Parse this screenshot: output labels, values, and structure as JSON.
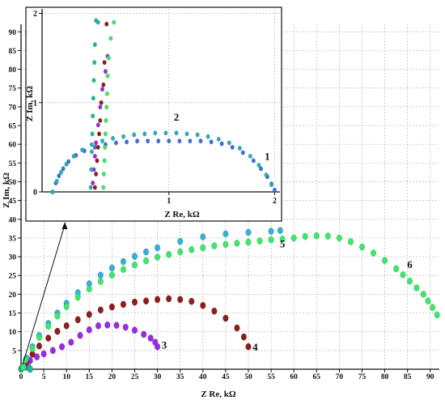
{
  "chart_data": [
    {
      "type": "scatter",
      "role": "main",
      "xlabel": "Z Re, kΩ",
      "ylabel": "Z Im, kΩ",
      "xlim": [
        0,
        92
      ],
      "ylim": [
        0,
        92
      ],
      "xticks": [
        0,
        5,
        10,
        15,
        20,
        25,
        30,
        35,
        40,
        45,
        50,
        55,
        60,
        65,
        70,
        75,
        80,
        85,
        90
      ],
      "yticks": [
        5,
        10,
        15,
        20,
        25,
        30,
        35,
        40,
        45,
        50,
        55,
        60,
        65,
        70,
        75,
        80,
        85,
        90
      ],
      "grid": true,
      "series": [
        {
          "name": "1",
          "color": "#3fa0e0",
          "x": [
            0.0,
            0.1,
            0.3,
            0.6,
            1.0,
            1.4,
            1.8,
            2.0
          ],
          "y": [
            0.0,
            0.3,
            0.5,
            0.6,
            0.6,
            0.5,
            0.3,
            0.0
          ]
        },
        {
          "name": "2",
          "color": "#22b5a5",
          "x": [
            0.0,
            0.2,
            0.5,
            1.0,
            1.5,
            1.8,
            2.0
          ],
          "y": [
            0.0,
            0.4,
            0.6,
            0.7,
            0.6,
            0.4,
            0.0
          ]
        },
        {
          "name": "3",
          "color": "#9a2be0",
          "x": [
            0.5,
            1.0,
            2.0,
            3.5,
            5.0,
            7.0,
            9.0,
            11.0,
            13.0,
            15.0,
            17.0,
            19.0,
            21.0,
            23.0,
            25.0,
            27.0,
            28.5,
            29.5,
            30.0
          ],
          "y": [
            0.5,
            1.3,
            2.3,
            3.3,
            4.1,
            5.0,
            6.0,
            7.2,
            9.0,
            10.5,
            11.6,
            11.8,
            11.7,
            11.2,
            10.4,
            9.3,
            8.3,
            7.2,
            6.0
          ]
        },
        {
          "name": "4",
          "color": "#8e1d1d",
          "x": [
            0.5,
            1.2,
            2.5,
            4.0,
            6.0,
            8.0,
            10.0,
            12.5,
            15.0,
            17.5,
            20.0,
            22.5,
            25.0,
            27.5,
            30.0,
            32.5,
            35.0,
            37.5,
            40.0,
            42.5,
            45.0,
            47.5,
            49.0,
            50.0
          ],
          "y": [
            0.5,
            2.0,
            4.0,
            6.2,
            8.3,
            10.1,
            11.6,
            13.2,
            14.6,
            15.8,
            16.6,
            17.3,
            17.9,
            18.2,
            18.6,
            18.8,
            18.6,
            18.1,
            17.0,
            15.5,
            13.6,
            11.0,
            8.6,
            6.0
          ]
        },
        {
          "name": "5",
          "color": "#35b1d6",
          "x": [
            0.5,
            1.2,
            2.5,
            4.0,
            6.0,
            8.0,
            10.0,
            12.5,
            15.0,
            17.5,
            20.0,
            22.5,
            25.0,
            27.5,
            30.0,
            35.0,
            40.0,
            45.0,
            50.0,
            55.0,
            57.0
          ],
          "y": [
            0.8,
            3.0,
            6.0,
            9.0,
            12.2,
            15.0,
            17.6,
            20.4,
            22.8,
            25.1,
            27.0,
            28.7,
            30.1,
            31.3,
            32.4,
            34.1,
            35.3,
            36.1,
            36.5,
            36.8,
            37.0
          ]
        },
        {
          "name": "6",
          "color": "#3ee66b",
          "x": [
            0.5,
            1.0,
            2.5,
            4.0,
            6.0,
            8.0,
            10.0,
            12.5,
            15.0,
            17.5,
            20.0,
            22.5,
            25.0,
            27.5,
            30.0,
            32.5,
            35.0,
            37.5,
            40.0,
            42.5,
            45.0,
            47.5,
            50.0,
            52.5,
            55.0,
            57.5,
            60.0,
            62.5,
            65.0,
            67.5,
            70.0,
            72.5,
            75.0,
            77.5,
            80.0,
            82.5,
            84.0,
            85.5,
            87.0,
            88.5,
            89.5,
            90.5,
            91.5
          ],
          "y": [
            0.5,
            2.5,
            5.5,
            8.5,
            11.5,
            14.2,
            16.7,
            19.2,
            21.4,
            23.4,
            25.1,
            26.6,
            27.8,
            28.9,
            29.9,
            30.6,
            31.3,
            31.9,
            32.4,
            32.9,
            33.3,
            33.6,
            33.9,
            34.2,
            34.5,
            34.7,
            35.0,
            35.4,
            35.6,
            35.5,
            35.0,
            34.0,
            32.6,
            31.0,
            29.0,
            26.8,
            25.2,
            23.5,
            21.7,
            20.0,
            18.2,
            16.5,
            14.5
          ]
        }
      ],
      "point_labels": [
        "1",
        "2",
        "3",
        "4",
        "5",
        "6"
      ]
    },
    {
      "type": "scatter",
      "role": "inset",
      "xlabel": "Z Re, kΩ",
      "ylabel": "Z Im, kΩ",
      "xlim": [
        -0.2,
        2.05
      ],
      "ylim": [
        0,
        2.05
      ],
      "xticks": [
        1,
        2
      ],
      "yticks": [
        0,
        1,
        2
      ],
      "grid": true,
      "series": [
        {
          "name": "1",
          "color": "#3b6fe0",
          "x": [
            -0.1,
            -0.07,
            -0.04,
            0.0,
            0.05,
            0.12,
            0.2,
            0.3,
            0.4,
            0.5,
            0.6,
            0.7,
            0.8,
            0.9,
            1.0,
            1.1,
            1.2,
            1.3,
            1.4,
            1.5,
            1.6,
            1.7,
            1.8,
            1.87,
            1.93,
            1.97,
            2.0
          ],
          "y": [
            0.0,
            0.1,
            0.18,
            0.26,
            0.34,
            0.41,
            0.46,
            0.5,
            0.53,
            0.55,
            0.56,
            0.57,
            0.57,
            0.57,
            0.57,
            0.57,
            0.57,
            0.57,
            0.56,
            0.54,
            0.5,
            0.44,
            0.35,
            0.26,
            0.17,
            0.09,
            0.02
          ]
        },
        {
          "name": "2",
          "color": "#27b0b8",
          "x": [
            -0.1,
            -0.06,
            -0.02,
            0.03,
            0.1,
            0.18,
            0.27,
            0.37,
            0.47,
            0.57,
            0.67,
            0.77,
            0.87,
            0.97,
            1.07,
            1.17,
            1.27,
            1.37,
            1.47,
            1.57,
            1.67,
            1.77,
            1.85,
            1.92,
            1.97
          ],
          "y": [
            0.0,
            0.12,
            0.22,
            0.31,
            0.4,
            0.47,
            0.53,
            0.57,
            0.6,
            0.62,
            0.64,
            0.65,
            0.66,
            0.66,
            0.66,
            0.65,
            0.64,
            0.62,
            0.59,
            0.55,
            0.49,
            0.4,
            0.3,
            0.19,
            0.08
          ]
        },
        {
          "name": "3",
          "color": "#9a2be0",
          "x": [
            0.28,
            0.29,
            0.3,
            0.31,
            0.33,
            0.35,
            0.37,
            0.4,
            0.42
          ],
          "y": [
            0.1,
            0.25,
            0.4,
            0.55,
            0.75,
            0.95,
            1.15,
            1.35,
            1.52
          ]
        },
        {
          "name": "4",
          "color": "#8e1d1d",
          "x": [
            0.3,
            0.31,
            0.32,
            0.33,
            0.34,
            0.35,
            0.36,
            0.38,
            0.39,
            0.41
          ],
          "y": [
            0.05,
            0.2,
            0.35,
            0.5,
            0.65,
            0.8,
            1.0,
            1.2,
            1.45,
            1.88
          ]
        },
        {
          "name": "5",
          "color": "#22b5a5",
          "x": [
            0.26,
            0.265,
            0.27,
            0.275,
            0.28,
            0.285,
            0.29,
            0.295,
            0.3,
            0.31,
            0.33
          ],
          "y": [
            0.05,
            0.25,
            0.45,
            0.65,
            0.85,
            1.05,
            1.25,
            1.45,
            1.65,
            1.92,
            1.9
          ]
        },
        {
          "name": "6",
          "color": "#3ee66b",
          "x": [
            0.38,
            0.385,
            0.39,
            0.395,
            0.4,
            0.405,
            0.41,
            0.415,
            0.42,
            0.43,
            0.45,
            0.48
          ],
          "y": [
            0.05,
            0.2,
            0.35,
            0.5,
            0.65,
            0.8,
            0.95,
            1.1,
            1.3,
            1.5,
            1.72,
            1.9
          ]
        }
      ],
      "point_labels": [
        "1",
        "2"
      ]
    }
  ]
}
